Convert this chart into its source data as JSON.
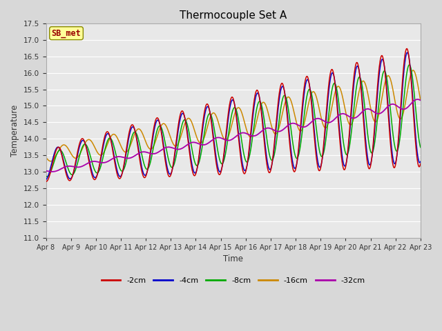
{
  "title": "Thermocouple Set A",
  "xlabel": "Time",
  "ylabel": "Temperature",
  "ylim": [
    11.0,
    17.5
  ],
  "yticks": [
    11.0,
    11.5,
    12.0,
    12.5,
    13.0,
    13.5,
    14.0,
    14.5,
    15.0,
    15.5,
    16.0,
    16.5,
    17.0,
    17.5
  ],
  "xtick_labels": [
    "Apr 8",
    "Apr 9",
    "Apr 10",
    "Apr 11",
    "Apr 12",
    "Apr 13",
    "Apr 14",
    "Apr 15",
    "Apr 16",
    "Apr 17",
    "Apr 18",
    "Apr 19",
    "Apr 20",
    "Apr 21",
    "Apr 22",
    "Apr 23"
  ],
  "colors": {
    "-2cm": "#cc0000",
    "-4cm": "#0000cc",
    "-8cm": "#00aa00",
    "-16cm": "#cc8800",
    "-32cm": "#aa00aa"
  },
  "legend_labels": [
    "-2cm",
    "-4cm",
    "-8cm",
    "-16cm",
    "-32cm"
  ],
  "sb_met_box_color": "#ffff99",
  "sb_met_text_color": "#990000",
  "background_color": "#d8d8d8",
  "plot_bg_color": "#e8e8e8",
  "grid_color": "#ffffff",
  "figsize": [
    6.4,
    4.8
  ],
  "dpi": 100
}
